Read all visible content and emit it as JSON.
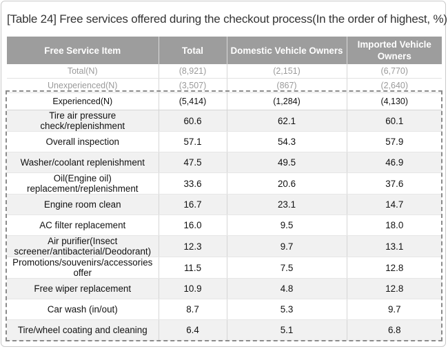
{
  "title": "[Table 24] Free services offered during the checkout process(In the order of highest, %)",
  "headers": [
    "Free Service Item",
    "Total",
    "Domestic Vehicle Owners",
    "Imported Vehicle Owners"
  ],
  "meta_rows": [
    {
      "label": "Total(N)",
      "total": "(8,921)",
      "domestic": "(2,151)",
      "imported": "(6,770)"
    },
    {
      "label": "Unexperienced(N)",
      "total": "(3,507)",
      "domestic": "(867)",
      "imported": "(2,640)"
    }
  ],
  "experienced": {
    "label": "Experienced(N)",
    "total": "(5,414)",
    "domestic": "(1,284)",
    "imported": "(4,130)"
  },
  "rows": [
    {
      "item": "Tire air pressure check/replenishment",
      "total": "60.6",
      "domestic": "62.1",
      "imported": "60.1"
    },
    {
      "item": "Overall inspection",
      "total": "57.1",
      "domestic": "54.3",
      "imported": "57.9"
    },
    {
      "item": "Washer/coolant replenishment",
      "total": "47.5",
      "domestic": "49.5",
      "imported": "46.9"
    },
    {
      "item": "Oil(Engine oil) replacement/replenishment",
      "total": "33.6",
      "domestic": "20.6",
      "imported": "37.6"
    },
    {
      "item": "Engine room clean",
      "total": "16.7",
      "domestic": "23.1",
      "imported": "14.7"
    },
    {
      "item": "AC filter replacement",
      "total": "16.0",
      "domestic": "9.5",
      "imported": "18.0"
    },
    {
      "item": "Air purifier(Insect screener/antibacterial/Deodorant)",
      "total": "12.3",
      "domestic": "9.7",
      "imported": "13.1"
    },
    {
      "item": "Promotions/souvenirs/accessories offer",
      "total": "11.5",
      "domestic": "7.5",
      "imported": "12.8"
    },
    {
      "item": "Free wiper replacement",
      "total": "10.9",
      "domestic": "4.8",
      "imported": "12.8"
    },
    {
      "item": "Car wash (in/out)",
      "total": "8.7",
      "domestic": "5.3",
      "imported": "9.7"
    },
    {
      "item": "Tire/wheel coating and cleaning",
      "total": "6.4",
      "domestic": "5.1",
      "imported": "6.8"
    }
  ]
}
